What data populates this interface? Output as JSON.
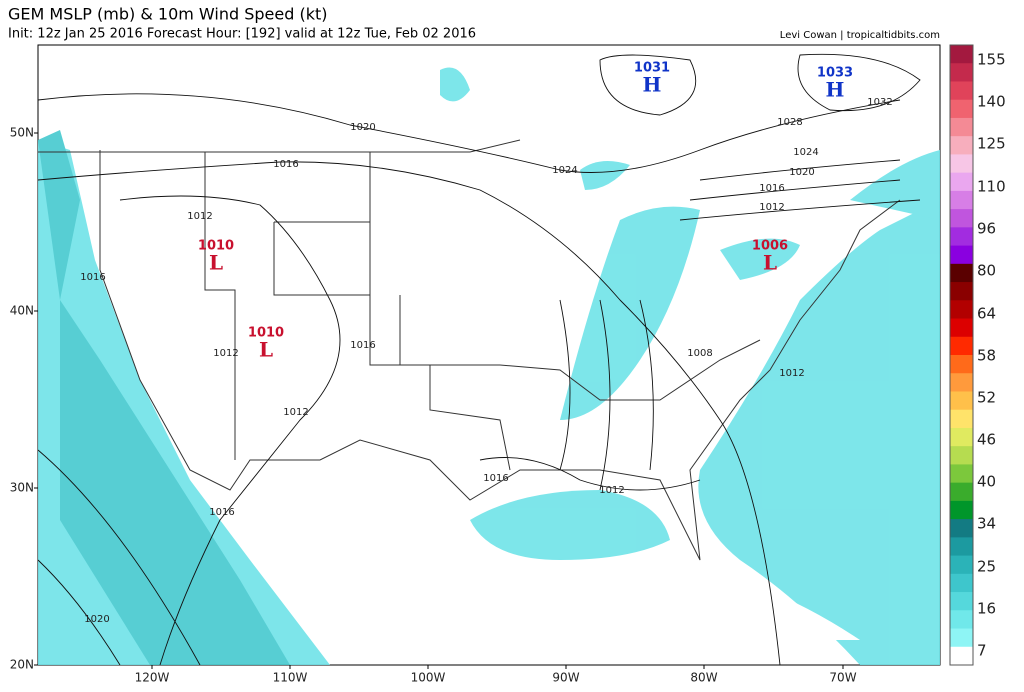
{
  "header": {
    "title": "GEM MSLP (mb) & 10m Wind Speed (kt)",
    "subtitle": "Init: 12z Jan 25 2016   Forecast Hour: [192]   valid at 12z Tue, Feb 02 2016",
    "credit": "Levi Cowan | tropicaltidbits.com"
  },
  "map": {
    "lat_labels": [
      "50N",
      "40N",
      "30N",
      "20N"
    ],
    "lon_labels": [
      "120W",
      "110W",
      "100W",
      "90W",
      "80W",
      "70W"
    ],
    "centers": [
      {
        "letter": "H",
        "value": "1031"
      },
      {
        "letter": "H",
        "value": "1033"
      },
      {
        "letter": "L",
        "value": "1010"
      },
      {
        "letter": "L",
        "value": "1010"
      },
      {
        "letter": "L",
        "value": "1006"
      }
    ],
    "isobar_labels": [
      "1020",
      "1016",
      "1012",
      "1016",
      "1012",
      "1016",
      "1012",
      "1024",
      "1028",
      "1032",
      "1024",
      "1020",
      "1016",
      "1012",
      "1008",
      "1012",
      "1016",
      "1012",
      "1016",
      "1020"
    ]
  },
  "colorbar": {
    "labels": [
      "155",
      "140",
      "125",
      "110",
      "96",
      "80",
      "64",
      "58",
      "52",
      "46",
      "40",
      "34",
      "25",
      "16",
      "7"
    ],
    "colors": [
      "#a3193f",
      "#c42a4c",
      "#e0435a",
      "#f0636f",
      "#f48a95",
      "#f7aebd",
      "#f7c6e6",
      "#eaa7ef",
      "#d77ee6",
      "#c055de",
      "#a22ce0",
      "#8a00e0",
      "#5a0000",
      "#8a0000",
      "#b20000",
      "#dc0000",
      "#ff2a00",
      "#ff6a1a",
      "#ff9a3c",
      "#ffc04a",
      "#ffe36a",
      "#e0ea60",
      "#b6dc50",
      "#7cc83c",
      "#3aac2c",
      "#00962a",
      "#137b83",
      "#1c9aa0",
      "#2bb3b8",
      "#3ec6cc",
      "#55d8dc",
      "#70e8ea",
      "#8ef5f5",
      "#ffffff"
    ]
  }
}
